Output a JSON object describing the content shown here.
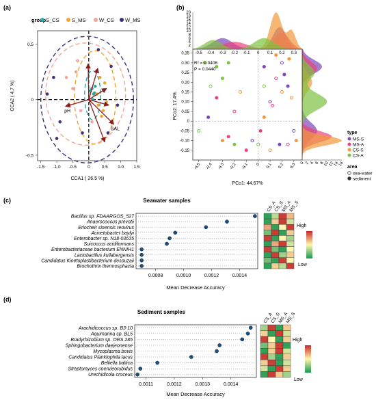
{
  "panel_labels": {
    "a": "(a)",
    "b": "(b)",
    "c": "(c)",
    "d": "(d)"
  },
  "colors": {
    "s_cs": "#2aa8a6",
    "s_ms": "#f2a431",
    "w_cs": "#f1a59b",
    "w_ms": "#3d2f7a",
    "arrow": "#8b1a1a",
    "ms_s": "#7f46b8",
    "ms_a": "#e8457e",
    "cs_s": "#f2993b",
    "cs_a": "#7dc242",
    "dot": "#1f4e79",
    "heat_high": "#c62828",
    "heat_mid": "#fff6b0",
    "heat_low": "#1a9850"
  },
  "chart_data": [
    {
      "id": "a",
      "type": "scatter",
      "title": "",
      "xlabel": "CCA1 ( 26.5 %)",
      "ylabel": "CCA2 ( 4.7 %)",
      "xlim": [
        -1.6,
        1.5
      ],
      "ylim": [
        -0.55,
        0.62
      ],
      "xticks": [
        "-1.5",
        "-1.0",
        "-0.5",
        "0",
        "0.5",
        "1.0",
        "1.5"
      ],
      "xtick_values": [
        -1.5,
        -1.0,
        -0.5,
        0,
        0.5,
        1.0,
        1.5
      ],
      "yticks": [
        "0.5",
        "0",
        "-0.5"
      ],
      "ytick_values": [
        0.5,
        0,
        -0.5
      ],
      "legend_title": "group",
      "legend": [
        "S_CS",
        "S_MS",
        "W_CS",
        "W_MS"
      ],
      "series": [
        {
          "name": "S_CS",
          "color_key": "s_cs",
          "ellipse": {
            "cx": 0.12,
            "cy": 0.04,
            "rx": 0.25,
            "ry": 0.22
          },
          "points": [
            [
              0.1,
              0.1
            ],
            [
              0.15,
              0.05
            ],
            [
              0.05,
              0.08
            ],
            [
              0.2,
              0.12
            ],
            [
              0.12,
              0.0
            ],
            [
              0.18,
              0.06
            ]
          ]
        },
        {
          "name": "S_MS",
          "color_key": "s_ms",
          "ellipse": {
            "cx": 0.2,
            "cy": 0.02,
            "rx": 0.65,
            "ry": 0.42
          },
          "points": [
            [
              0.3,
              -0.05
            ],
            [
              0.45,
              -0.1
            ],
            [
              0.25,
              0.05
            ],
            [
              0.5,
              0.15
            ],
            [
              0.35,
              0.2
            ],
            [
              0.55,
              -0.02
            ],
            [
              0.4,
              -0.15
            ]
          ]
        },
        {
          "name": "W_CS",
          "color_key": "w_cs",
          "ellipse": {
            "cx": -0.1,
            "cy": 0.05,
            "rx": 1.25,
            "ry": 0.46
          },
          "points": [
            [
              -0.5,
              0.1
            ],
            [
              -0.4,
              0.25
            ],
            [
              -0.25,
              -0.1
            ],
            [
              -0.6,
              -0.05
            ],
            [
              0.0,
              0.28
            ],
            [
              -0.35,
              0.35
            ],
            [
              -0.7,
              0.2
            ],
            [
              0.1,
              -0.2
            ]
          ]
        },
        {
          "name": "W_MS",
          "color_key": "w_ms",
          "ellipse": {
            "cx": -0.05,
            "cy": 0.0,
            "rx": 1.45,
            "ry": 0.57
          },
          "points": [
            [
              -1.3,
              0.05
            ],
            [
              -1.1,
              0.2
            ],
            [
              -0.9,
              -0.2
            ],
            [
              0.7,
              0.3
            ],
            [
              0.9,
              -0.05
            ],
            [
              0.6,
              -0.3
            ],
            [
              -0.2,
              -0.3
            ],
            [
              -1.0,
              -0.35
            ],
            [
              0.3,
              0.45
            ]
          ]
        }
      ],
      "arrows": [
        {
          "label": "pH",
          "x": -0.72,
          "y": -0.06
        },
        {
          "label": "SAL",
          "x": 0.78,
          "y": -0.22
        },
        {
          "label": "",
          "x": 0.62,
          "y": -0.05
        },
        {
          "label": "",
          "x": 0.55,
          "y": 0.1
        },
        {
          "label": "",
          "x": 0.28,
          "y": 0.28
        },
        {
          "label": "",
          "x": 0.5,
          "y": -0.38
        },
        {
          "label": "",
          "x": -0.02,
          "y": 0.32
        }
      ]
    },
    {
      "id": "b",
      "type": "scatter",
      "title": "",
      "xlabel": "PCo1: 44.67%",
      "ylabel": "PCo2: 17.4%",
      "xlim": [
        -0.55,
        0.37
      ],
      "ylim": [
        -0.2,
        0.37
      ],
      "xticks": [
        "-0.5",
        "-0.4",
        "-0.3",
        "-0.2",
        "-0.1",
        "0",
        "0.1",
        "0.2",
        "0.3"
      ],
      "xtick_values": [
        -0.5,
        -0.4,
        -0.3,
        -0.2,
        -0.1,
        0,
        0.1,
        0.2,
        0.3
      ],
      "yticks": [
        "0.35",
        "0.30",
        "0.25",
        "0.20",
        "0.15",
        "0.10",
        "0.05",
        "0",
        "-0.05",
        "-0.10",
        "-0.15"
      ],
      "ytick_values": [
        0.35,
        0.3,
        0.25,
        0.2,
        0.15,
        0.1,
        0.05,
        0,
        -0.05,
        -0.1,
        -0.15
      ],
      "top_density_ticks": [
        "2",
        "4",
        "6",
        "8",
        "10",
        "12",
        "14",
        "16",
        "18",
        "20"
      ],
      "top_density_tick_values": [
        2,
        4,
        6,
        8,
        10,
        12,
        14,
        16,
        18,
        20
      ],
      "right_density_ticks": [
        "0",
        "2",
        "4",
        "6",
        "8",
        "10",
        "12",
        "14",
        "16"
      ],
      "right_density_tick_values": [
        0,
        2,
        4,
        6,
        8,
        10,
        12,
        14,
        16
      ],
      "stats": {
        "r2": "R² = 0.0406",
        "p": "P = 0.0440"
      },
      "legend_type_title": "type",
      "legend_types": [
        "MS-S",
        "MS-A",
        "CS-S",
        "CS-A"
      ],
      "legend_area_title": "area",
      "legend_areas": [
        "sea-water",
        "sediment"
      ],
      "series": [
        {
          "name": "MS-S",
          "color_key": "ms_s",
          "points": [
            [
              0.05,
              0.28
            ],
            [
              0.2,
              0.3
            ],
            [
              0.25,
              0.18
            ],
            [
              0.1,
              0.1
            ],
            [
              -0.42,
              0.02
            ],
            [
              0.3,
              -0.05
            ],
            [
              0.18,
              -0.12
            ],
            [
              -0.05,
              -0.1
            ],
            [
              0.22,
              0.24
            ]
          ]
        },
        {
          "name": "MS-A",
          "color_key": "ms_a",
          "points": [
            [
              -0.35,
              0.12
            ],
            [
              -0.2,
              0.05
            ],
            [
              0.02,
              -0.05
            ],
            [
              0.15,
              0.22
            ],
            [
              -0.1,
              -0.15
            ],
            [
              0.25,
              -0.12
            ],
            [
              -0.25,
              -0.08
            ],
            [
              0.12,
              0.08
            ]
          ]
        },
        {
          "name": "CS-S",
          "color_key": "cs_s",
          "points": [
            [
              0.15,
              0.34
            ],
            [
              0.28,
              0.12
            ],
            [
              0.32,
              -0.1
            ],
            [
              -0.15,
              0.15
            ],
            [
              0.05,
              0.02
            ],
            [
              0.2,
              0.15
            ],
            [
              -0.3,
              -0.1
            ],
            [
              0.1,
              -0.15
            ],
            [
              0.26,
              0.32
            ]
          ]
        },
        {
          "name": "CS-A",
          "color_key": "cs_a",
          "points": [
            [
              -0.45,
              0.3
            ],
            [
              -0.4,
              0.18
            ],
            [
              -0.3,
              0.22
            ],
            [
              -0.5,
              -0.05
            ],
            [
              -0.2,
              -0.12
            ],
            [
              0.05,
              0.18
            ],
            [
              -0.35,
              0.28
            ],
            [
              0.0,
              -0.12
            ],
            [
              -0.25,
              0.3
            ]
          ]
        }
      ]
    },
    {
      "id": "c",
      "type": "dot",
      "title": "Seawater samples",
      "xlabel": "Mean Decrease Accuracy",
      "xlim": [
        0.00066,
        0.00153
      ],
      "xticks": [
        "0.0008",
        "0.0010",
        "0.0012",
        "0.0014"
      ],
      "xtick_values": [
        0.0008,
        0.001,
        0.0012,
        0.0014
      ],
      "categories": [
        "Bacillus sp. FDAARGOS_527",
        "Anaerococcus prevotii",
        "Eriocheir sinensis reovirus",
        "Acinetobacter baylyi",
        "Enterobacter sp. N18-03635",
        "Suicoccus acidiformans",
        "Enterobacteriaceae bacterium ENNIH1",
        "Lactobacillus kullabergensis",
        "Candidatus Kinetoplastibacterium desouzaii",
        "Brochothrix thermosphacta"
      ],
      "values": [
        0.00151,
        0.00131,
        0.00116,
        0.00094,
        0.0009,
        0.00088,
        0.0007,
        0.0007,
        0.0007,
        0.0007
      ],
      "heatmap_columns": [
        "CS_A",
        "CS_S",
        "MS_A",
        "MS_S"
      ],
      "heatmap": [
        [
          0.05,
          0.35,
          0.95,
          0.65
        ],
        [
          0.05,
          0.6,
          0.95,
          0.4
        ],
        [
          0.7,
          0.05,
          0.5,
          0.95
        ],
        [
          0.2,
          0.95,
          0.05,
          0.6
        ],
        [
          0.95,
          0.05,
          0.5,
          0.3
        ],
        [
          0.05,
          0.7,
          0.95,
          0.4
        ],
        [
          0.95,
          0.2,
          0.05,
          0.5
        ],
        [
          0.05,
          0.95,
          0.3,
          0.6
        ],
        [
          0.2,
          0.05,
          0.95,
          0.5
        ],
        [
          0.05,
          0.6,
          0.35,
          0.95
        ]
      ],
      "scale_high": "High",
      "scale_low": "Low"
    },
    {
      "id": "d",
      "type": "dot",
      "title": "Sediment samples",
      "xlabel": "Mean Decrease Accuracy",
      "xlim": [
        0.00106,
        0.00149
      ],
      "xticks": [
        "0.0011",
        "0.0012",
        "0.0013",
        "0.0014"
      ],
      "xtick_values": [
        0.0011,
        0.0012,
        0.0013,
        0.0014
      ],
      "categories": [
        "Arachidicoccus sp. B3-10",
        "Aquimarina sp. BL5",
        "Bradyrhizobium sp. ORS 285",
        "Sphingobacterium daejeonense",
        "Mycoplasma bovis",
        "Candidatus Planktophila lacus",
        "Belliella baltica",
        "Streptomyces coeruleorubidus",
        "Urechidicola croceus"
      ],
      "values": [
        0.00147,
        0.00146,
        0.00144,
        0.00136,
        0.00135,
        0.00126,
        0.00114,
        0.00108,
        0.00107
      ],
      "heatmap_columns": [
        "CS_A",
        "CS_S",
        "MS_A",
        "MS_S"
      ],
      "heatmap": [
        [
          0.3,
          0.95,
          0.05,
          0.6
        ],
        [
          0.6,
          0.05,
          0.95,
          0.4
        ],
        [
          0.95,
          0.5,
          0.05,
          0.6
        ],
        [
          0.2,
          0.6,
          0.95,
          0.05
        ],
        [
          0.05,
          0.6,
          0.95,
          0.4
        ],
        [
          0.95,
          0.3,
          0.05,
          0.6
        ],
        [
          0.6,
          0.95,
          0.05,
          0.4
        ],
        [
          0.4,
          0.05,
          0.95,
          0.6
        ],
        [
          0.05,
          0.95,
          0.6,
          0.3
        ]
      ],
      "scale_high": "High",
      "scale_low": "Low"
    }
  ]
}
